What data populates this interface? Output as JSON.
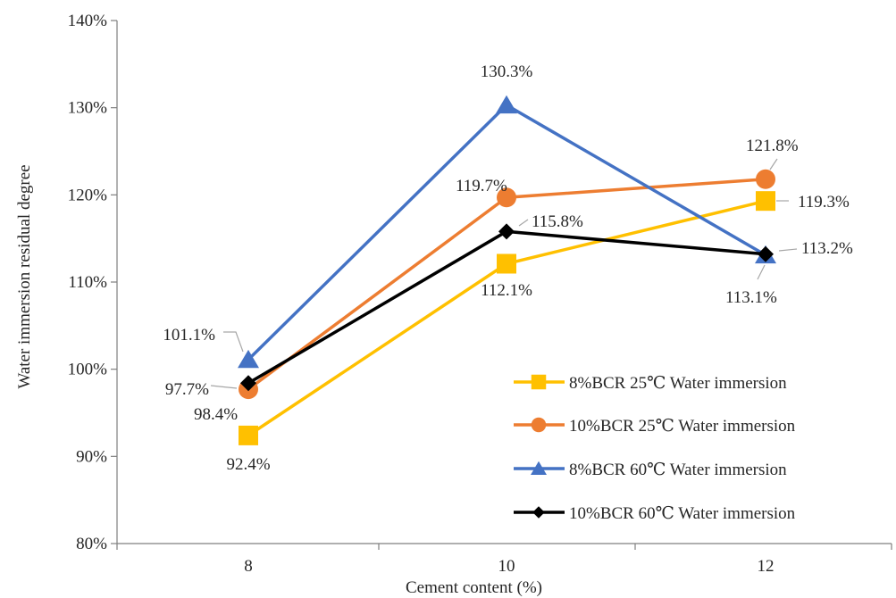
{
  "chart_data": {
    "type": "line",
    "xlabel": "Cement content (%)",
    "ylabel": "Water immersion residual degree",
    "categories": [
      "8",
      "10",
      "12"
    ],
    "ylim": [
      80,
      140
    ],
    "yticks": [
      80,
      90,
      100,
      110,
      120,
      130,
      140
    ],
    "ytick_labels": [
      "80%",
      "90%",
      "100%",
      "110%",
      "120%",
      "130%",
      "140%"
    ],
    "grid": false,
    "legend_position": "bottom-right",
    "series": [
      {
        "name": "8%BCR 25℃ Water immersion",
        "values": [
          92.4,
          112.1,
          119.3
        ],
        "labels": [
          "92.4%",
          "112.1%",
          "119.3%"
        ],
        "color": "#FFC000",
        "marker": "square"
      },
      {
        "name": "10%BCR 25℃ Water immersion",
        "values": [
          97.7,
          119.7,
          121.8
        ],
        "labels": [
          "97.7%",
          "119.7%",
          "121.8%"
        ],
        "color": "#ED7D31",
        "marker": "circle"
      },
      {
        "name": "8%BCR 60℃ Water immersion",
        "values": [
          101.1,
          130.3,
          113.1
        ],
        "labels": [
          "101.1%",
          "130.3%",
          "113.1%"
        ],
        "color": "#4472C4",
        "marker": "triangle"
      },
      {
        "name": "10%BCR 60℃ Water immersion",
        "values": [
          98.4,
          115.8,
          113.2
        ],
        "labels": [
          "98.4%",
          "115.8%",
          "113.2%"
        ],
        "color": "#000000",
        "marker": "diamond"
      }
    ]
  }
}
